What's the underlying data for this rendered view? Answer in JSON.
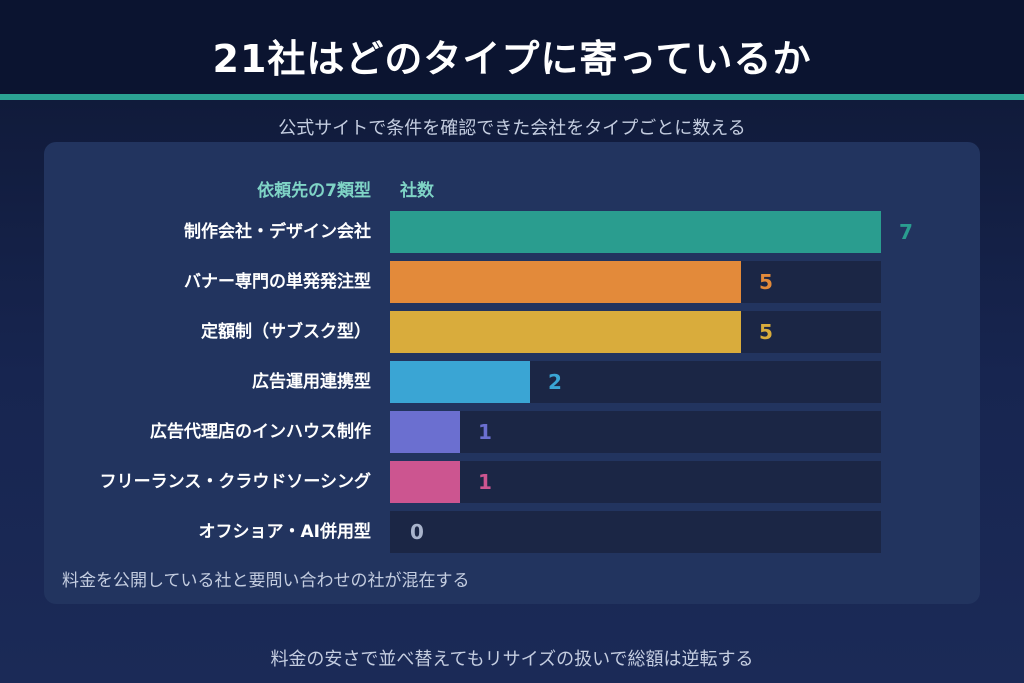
{
  "header": {
    "title": "21社はどのタイプに寄っているか",
    "subtitle": "公式サイトで条件を確認できた会社をタイプごとに数える"
  },
  "columns": {
    "category": "依頼先の7類型",
    "count": "社数"
  },
  "footnote": "料金を公開している社と要問い合わせの社が混在する",
  "bottom_note": "料金の安さで並べ替えてもリサイズの扱いで総額は逆転する",
  "colors": {
    "teal": "#2a9d8f",
    "orange": "#e38a3a",
    "yellow": "#d9ac3c",
    "sky": "#3aa5d4",
    "indigo": "#6b6fd0",
    "pink": "#cc5590",
    "muted": "#a9b4cc"
  },
  "chart_data": {
    "type": "bar",
    "orientation": "horizontal",
    "categories": [
      "制作会社・デザイン会社",
      "バナー専門の単発発注型",
      "定額制（サブスク型）",
      "広告運用連携型",
      "広告代理店のインハウス制作",
      "フリーランス・クラウドソーシング",
      "オフショア・AI併用型"
    ],
    "values": [
      7,
      5,
      5,
      2,
      1,
      1,
      0
    ],
    "bar_colors": [
      "#2a9d8f",
      "#e38a3a",
      "#d9ac3c",
      "#3aa5d4",
      "#6b6fd0",
      "#cc5590",
      "#a9b4cc"
    ],
    "xlim": [
      0,
      7
    ],
    "grid": false,
    "legend": "none"
  }
}
